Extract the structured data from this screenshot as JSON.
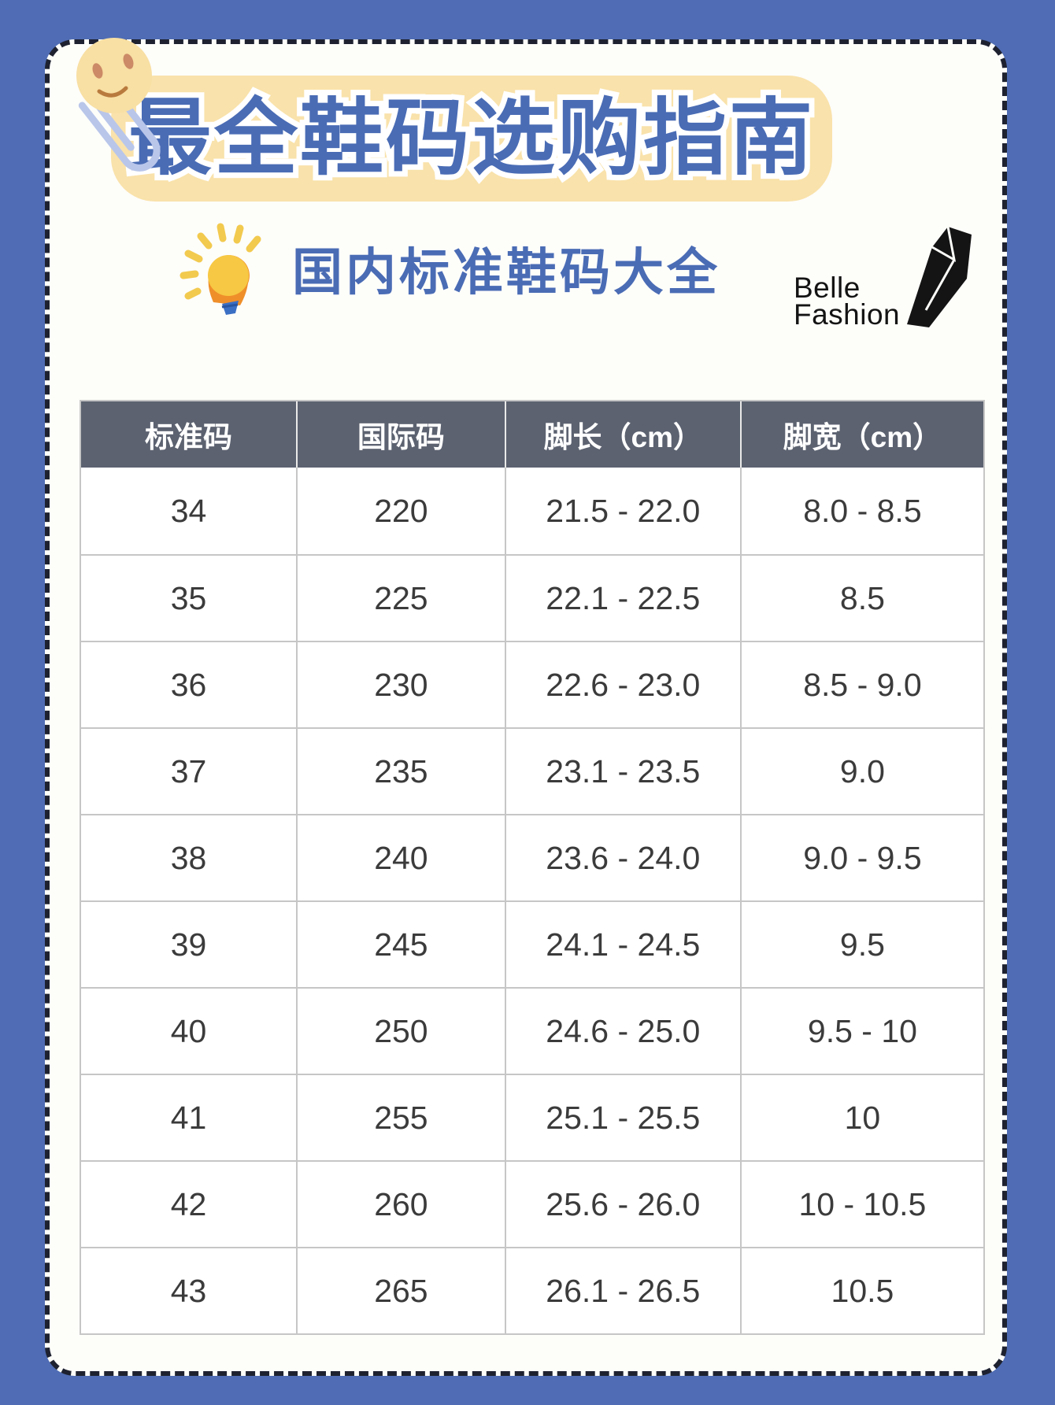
{
  "page": {
    "title": "最全鞋码选购指南",
    "subtitle": "国内标准鞋码大全",
    "brand": {
      "line1": "Belle",
      "line2": "Fashion"
    }
  },
  "colors": {
    "background": "#4f6cb4",
    "card": "#fdfdfa",
    "title_banner": "#f9e2ab",
    "title_text": "#4a6cb5",
    "header_bg": "#5c6270",
    "header_text": "#ffffff",
    "cell_text": "#3b3b3b",
    "table_border": "#c6c6c6",
    "bulb_yellow": "#f7c843",
    "bulb_orange": "#ef8f2a",
    "clip_blue": "#b9c6ea",
    "face_yellow": "#f8dfa3"
  },
  "table": {
    "headers": [
      "标准码",
      "国际码",
      "脚长（cm）",
      "脚宽（cm）"
    ],
    "rows": [
      [
        "34",
        "220",
        "21.5 - 22.0",
        "8.0 - 8.5"
      ],
      [
        "35",
        "225",
        "22.1 - 22.5",
        "8.5"
      ],
      [
        "36",
        "230",
        "22.6 - 23.0",
        "8.5 - 9.0"
      ],
      [
        "37",
        "235",
        "23.1 - 23.5",
        "9.0"
      ],
      [
        "38",
        "240",
        "23.6 - 24.0",
        "9.0 - 9.5"
      ],
      [
        "39",
        "245",
        "24.1 - 24.5",
        "9.5"
      ],
      [
        "40",
        "250",
        "24.6 - 25.0",
        "9.5 - 10"
      ],
      [
        "41",
        "255",
        "25.1 - 25.5",
        "10"
      ],
      [
        "42",
        "260",
        "25.6 - 26.0",
        "10 - 10.5"
      ],
      [
        "43",
        "265",
        "26.1 - 26.5",
        "10.5"
      ]
    ]
  }
}
